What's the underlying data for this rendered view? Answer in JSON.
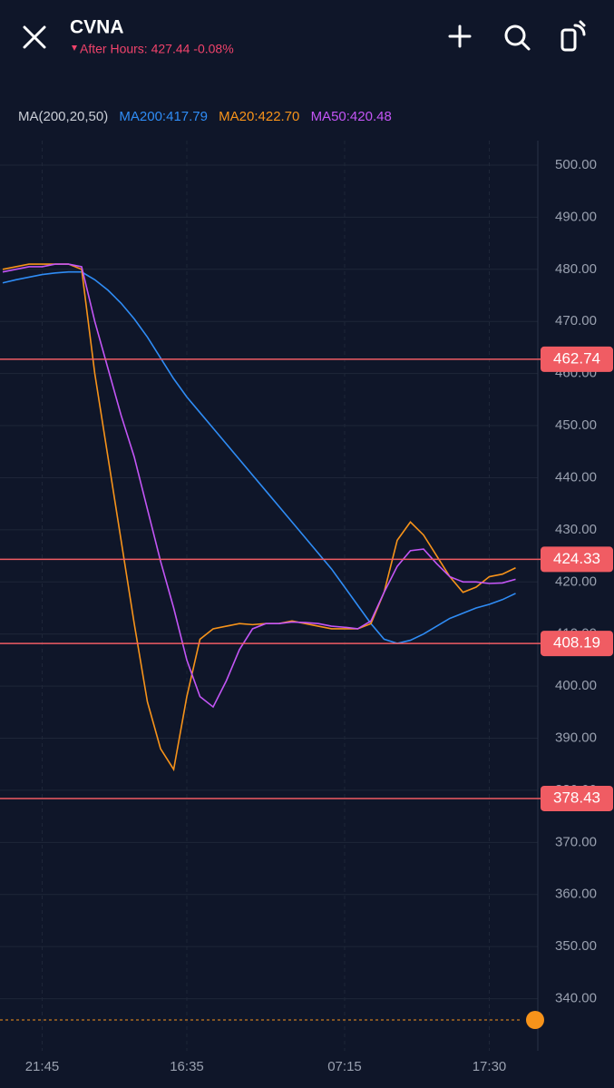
{
  "header": {
    "symbol": "CVNA",
    "after_hours": "After Hours: 427.44 -0.08%"
  },
  "indicator": {
    "label": "MA(200,20,50)",
    "items": [
      {
        "text": "MA200:417.79",
        "color": "#2f8cf5"
      },
      {
        "text": "MA20:422.70",
        "color": "#f7931a"
      },
      {
        "text": "MA50:420.48",
        "color": "#c355f5"
      }
    ]
  },
  "chart_data": {
    "type": "line",
    "categories": [
      null,
      null,
      null,
      "21:45",
      null,
      null,
      null,
      null,
      null,
      null,
      null,
      null,
      null,
      null,
      "16:35",
      null,
      null,
      null,
      null,
      null,
      null,
      null,
      null,
      null,
      null,
      null,
      "07:15",
      null,
      null,
      null,
      null,
      null,
      null,
      null,
      null,
      null,
      null,
      "17:30",
      null,
      null
    ],
    "series": [
      {
        "name": "MA200",
        "color": "#2f8cf5",
        "values": [
          477.4,
          478,
          478.5,
          479,
          479.3,
          479.5,
          479.5,
          478,
          476,
          473.5,
          470.5,
          467,
          463,
          459,
          455.5,
          452.5,
          449.5,
          446.5,
          443.5,
          440.5,
          437.5,
          434.5,
          431.5,
          428.5,
          425.5,
          422.5,
          419,
          415.5,
          412,
          409,
          408.2,
          408.8,
          410,
          411.5,
          413,
          414,
          415,
          415.7,
          416.6,
          417.8
        ]
      },
      {
        "name": "MA20",
        "color": "#f7931a",
        "values": [
          480,
          480.5,
          481,
          481,
          481,
          481,
          480,
          460,
          444,
          428,
          412,
          397,
          388,
          384,
          398,
          409,
          411,
          411.5,
          412,
          411.8,
          412,
          412,
          412.5,
          412,
          411.5,
          411,
          411,
          411,
          412,
          418,
          428,
          431.5,
          429,
          425,
          421,
          418,
          419,
          421,
          421.5,
          422.7
        ]
      },
      {
        "name": "MA50",
        "color": "#c355f5",
        "values": [
          479.5,
          480,
          480.5,
          480.5,
          481,
          481,
          480.5,
          470,
          461,
          452,
          444,
          434,
          424,
          415,
          405,
          398,
          396,
          401,
          407,
          411,
          412,
          412,
          412.3,
          412.2,
          412,
          411.5,
          411.3,
          411,
          412.5,
          418,
          423,
          426,
          426.3,
          423.5,
          421,
          420,
          420,
          419.7,
          419.8,
          420.5
        ]
      }
    ],
    "levels": [
      462.74,
      424.33,
      408.19,
      378.43
    ],
    "level_color": "#f05c63",
    "ylim": [
      330,
      504.7
    ],
    "yticks": [
      {
        "value": 340,
        "label": "340.00"
      },
      {
        "value": 350,
        "label": "350.00"
      },
      {
        "value": 360,
        "label": "360.00"
      },
      {
        "value": 370,
        "label": "370.00"
      },
      {
        "value": 380,
        "label": "380.00"
      },
      {
        "value": 390,
        "label": "390.00"
      },
      {
        "value": 400,
        "label": "400.00"
      },
      {
        "value": 410,
        "label": "410.00"
      },
      {
        "value": 420,
        "label": "420.00"
      },
      {
        "value": 430,
        "label": "430.00"
      },
      {
        "value": 440,
        "label": "440.00"
      },
      {
        "value": 450,
        "label": "450.00"
      },
      {
        "value": 460,
        "label": "460.00"
      },
      {
        "value": 470,
        "label": "470.00"
      },
      {
        "value": 480,
        "label": "480.00"
      },
      {
        "value": 490,
        "label": "490.00"
      },
      {
        "value": 500,
        "label": "500.00"
      }
    ],
    "grid": true
  }
}
